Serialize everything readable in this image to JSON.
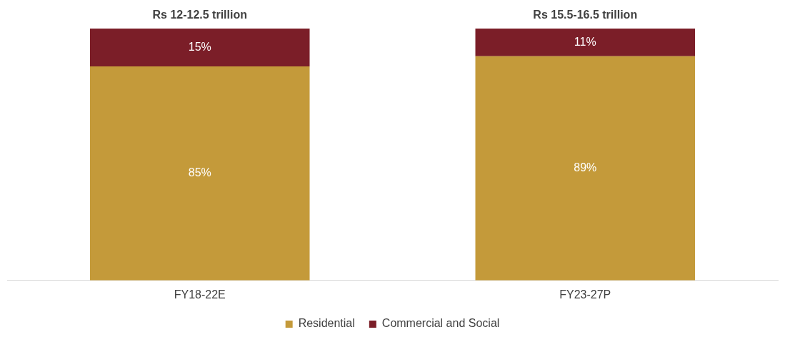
{
  "chart_data": {
    "type": "bar",
    "stacked": true,
    "legend": "bottom",
    "data_labels": true,
    "categories": [
      "FY18-22E",
      "FY23-27P"
    ],
    "series": [
      {
        "name": "Residential",
        "color": "#c49a3a",
        "values": [
          85,
          89
        ],
        "value_labels": [
          "85%",
          "89%"
        ]
      },
      {
        "name": "Commercial and Social",
        "color": "#7b1e28",
        "values": [
          15,
          11
        ],
        "value_labels": [
          "15%",
          "11%"
        ]
      }
    ],
    "totals": [
      "Rs 12-12.5 trillion",
      "Rs 15.5-16.5 trillion"
    ]
  }
}
